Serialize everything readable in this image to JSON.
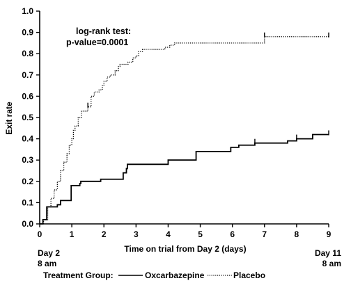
{
  "chart_data": {
    "type": "line",
    "xlabel": "Time on trial from Day 2 (days)",
    "ylabel": "Exit rate",
    "xlim": [
      0,
      9
    ],
    "ylim": [
      0,
      1.0
    ],
    "x_ticks": [
      0,
      1,
      2,
      3,
      4,
      5,
      6,
      7,
      8,
      9
    ],
    "y_ticks": [
      "0.0",
      "0.1",
      "0.2",
      "0.3",
      "0.4",
      "0.5",
      "0.6",
      "0.7",
      "0.8",
      "0.9",
      "1.0"
    ],
    "x_start_label": [
      "Day 2",
      "8 am"
    ],
    "x_end_label": [
      "Day 11",
      "8 am"
    ],
    "annotation": [
      "log-rank test:",
      "p-value=0.0001"
    ],
    "legend": {
      "title": "Treatment Group:",
      "position": "bottom"
    },
    "series": [
      {
        "name": "Oxcarbazepine",
        "line_style": "solid",
        "step_points": [
          [
            0,
            0
          ],
          [
            0.1,
            0.02
          ],
          [
            0.22,
            0.08
          ],
          [
            0.55,
            0.09
          ],
          [
            0.65,
            0.11
          ],
          [
            0.98,
            0.18
          ],
          [
            1.25,
            0.19
          ],
          [
            1.28,
            0.2
          ],
          [
            1.9,
            0.21
          ],
          [
            2.6,
            0.24
          ],
          [
            2.7,
            0.26
          ],
          [
            2.73,
            0.28
          ],
          [
            4.0,
            0.3
          ],
          [
            4.87,
            0.34
          ],
          [
            5.95,
            0.36
          ],
          [
            6.2,
            0.37
          ],
          [
            6.7,
            0.38
          ],
          [
            7.72,
            0.39
          ],
          [
            8.0,
            0.4
          ],
          [
            8.5,
            0.42
          ],
          [
            9.0,
            0.42
          ]
        ],
        "censor_marks": [
          [
            6.7,
            0.38
          ],
          [
            8.0,
            0.4
          ],
          [
            9.0,
            0.42
          ]
        ]
      },
      {
        "name": "Placebo",
        "line_style": "dotted",
        "step_points": [
          [
            0,
            0
          ],
          [
            0.12,
            0.02
          ],
          [
            0.25,
            0.08
          ],
          [
            0.35,
            0.12
          ],
          [
            0.45,
            0.16
          ],
          [
            0.55,
            0.2
          ],
          [
            0.65,
            0.25
          ],
          [
            0.75,
            0.29
          ],
          [
            0.85,
            0.33
          ],
          [
            0.92,
            0.37
          ],
          [
            1.0,
            0.4
          ],
          [
            1.05,
            0.44
          ],
          [
            1.1,
            0.46
          ],
          [
            1.2,
            0.5
          ],
          [
            1.3,
            0.53
          ],
          [
            1.5,
            0.55
          ],
          [
            1.6,
            0.6
          ],
          [
            1.7,
            0.62
          ],
          [
            1.85,
            0.63
          ],
          [
            1.95,
            0.65
          ],
          [
            2.0,
            0.67
          ],
          [
            2.1,
            0.69
          ],
          [
            2.2,
            0.7
          ],
          [
            2.35,
            0.72
          ],
          [
            2.45,
            0.74
          ],
          [
            2.5,
            0.75
          ],
          [
            2.75,
            0.76
          ],
          [
            2.9,
            0.78
          ],
          [
            3.0,
            0.79
          ],
          [
            3.08,
            0.81
          ],
          [
            3.2,
            0.82
          ],
          [
            3.9,
            0.83
          ],
          [
            4.05,
            0.84
          ],
          [
            4.2,
            0.85
          ],
          [
            7.0,
            0.88
          ],
          [
            9.0,
            0.88
          ]
        ],
        "censor_marks": [
          [
            1.5,
            0.55
          ],
          [
            7.0,
            0.88
          ],
          [
            9.0,
            0.88
          ]
        ]
      }
    ]
  }
}
